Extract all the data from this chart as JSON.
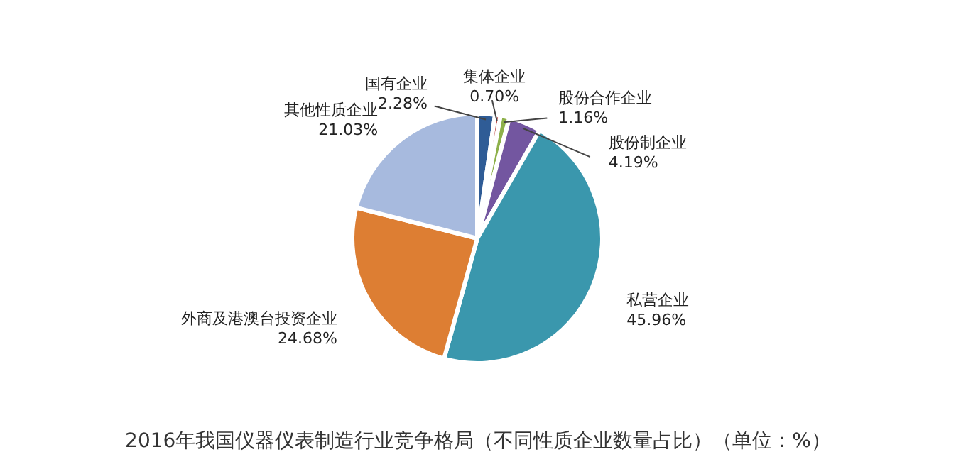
{
  "chart_data": {
    "type": "pie",
    "title": "2016年我国仪器仪表制造行业竞争格局（不同性质企业数量占比）（单位：%）",
    "categories": [
      "国有企业",
      "集体企业",
      "股份合作企业",
      "股份制企业",
      "私营企业",
      "外商及港澳台投资企业",
      "其他性质企业"
    ],
    "values": [
      2.28,
      0.7,
      1.16,
      4.19,
      45.96,
      24.68,
      21.03
    ],
    "value_labels": [
      "2.28%",
      "0.70%",
      "1.16%",
      "4.19%",
      "45.96%",
      "24.68%",
      "21.03%"
    ],
    "colors": [
      "#2f5c96",
      "#be4b48",
      "#8db04a",
      "#7356a0",
      "#3a97ad",
      "#dd7e33",
      "#a7bade"
    ]
  }
}
